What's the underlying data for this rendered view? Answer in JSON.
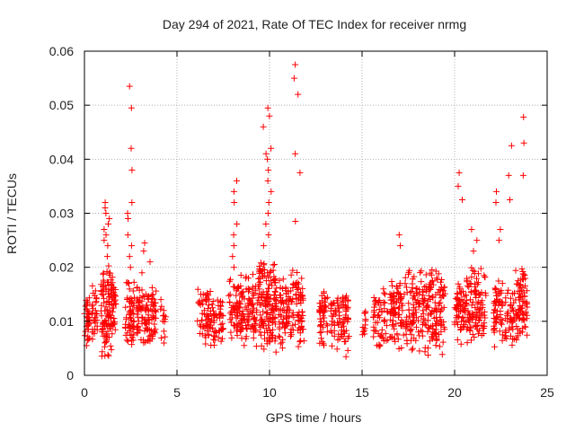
{
  "chart_data": {
    "type": "scatter",
    "title": "Day 294 of 2021, Rate Of TEC Index for receiver nrmg",
    "xlabel": "GPS time / hours",
    "ylabel": "ROTI / TECUs",
    "xlim": [
      0,
      25
    ],
    "ylim": [
      0,
      0.06
    ],
    "grid": true,
    "marker": "+",
    "marker_color": "#ff0000",
    "x_ticks": [
      0,
      5,
      10,
      15,
      20,
      25
    ],
    "x_tick_labels": [
      "0",
      "5",
      "10",
      "15",
      "20",
      "25"
    ],
    "y_ticks": [
      0,
      0.01,
      0.02,
      0.03,
      0.04,
      0.05,
      0.06
    ],
    "y_tick_labels": [
      "0",
      "0.01",
      "0.02",
      "0.03",
      "0.04",
      "0.05",
      "0.06"
    ],
    "series": [
      {
        "name": "ROTI",
        "clusters": [
          {
            "x0": 0.0,
            "x1": 0.3,
            "count": 35,
            "base_min": 0.004,
            "base_max": 0.016,
            "peaks": []
          },
          {
            "x0": 0.4,
            "x1": 0.7,
            "count": 30,
            "base_min": 0.005,
            "base_max": 0.017,
            "peaks": []
          },
          {
            "x0": 0.9,
            "x1": 1.5,
            "count": 110,
            "base_min": 0.002,
            "base_max": 0.021,
            "peaks": [
              0.022,
              0.024,
              0.025,
              0.026,
              0.027,
              0.028,
              0.029,
              0.03,
              0.031,
              0.032
            ]
          },
          {
            "x0": 1.5,
            "x1": 1.7,
            "count": 25,
            "base_min": 0.004,
            "base_max": 0.019,
            "peaks": []
          },
          {
            "x0": 2.2,
            "x1": 2.7,
            "count": 60,
            "base_min": 0.003,
            "base_max": 0.018,
            "peaks": [
              0.02,
              0.022,
              0.024,
              0.026,
              0.029,
              0.03,
              0.032,
              0.038,
              0.042,
              0.0495,
              0.0535
            ]
          },
          {
            "x0": 2.8,
            "x1": 3.9,
            "count": 110,
            "base_min": 0.003,
            "base_max": 0.017,
            "peaks": [
              0.019,
              0.021,
              0.023,
              0.0245
            ]
          },
          {
            "x0": 4.1,
            "x1": 4.4,
            "count": 14,
            "base_min": 0.004,
            "base_max": 0.016,
            "peaks": []
          },
          {
            "x0": 6.1,
            "x1": 7.5,
            "count": 110,
            "base_min": 0.004,
            "base_max": 0.016,
            "peaks": []
          },
          {
            "x0": 7.8,
            "x1": 8.4,
            "count": 55,
            "base_min": 0.004,
            "base_max": 0.018,
            "peaks": [
              0.02,
              0.022,
              0.024,
              0.026,
              0.028,
              0.032,
              0.034,
              0.036
            ]
          },
          {
            "x0": 8.4,
            "x1": 9.4,
            "count": 95,
            "base_min": 0.003,
            "base_max": 0.019,
            "peaks": []
          },
          {
            "x0": 9.4,
            "x1": 10.4,
            "count": 150,
            "base_min": 0.002,
            "base_max": 0.022,
            "peaks": [
              0.024,
              0.026,
              0.028,
              0.03,
              0.032,
              0.034,
              0.036,
              0.038,
              0.04,
              0.041,
              0.042,
              0.046,
              0.048,
              0.0495
            ]
          },
          {
            "x0": 10.5,
            "x1": 11.1,
            "count": 60,
            "base_min": 0.004,
            "base_max": 0.019,
            "peaks": []
          },
          {
            "x0": 11.1,
            "x1": 11.9,
            "count": 75,
            "base_min": 0.003,
            "base_max": 0.02,
            "peaks": [
              0.0285,
              0.0375,
              0.041,
              0.052,
              0.055,
              0.0575
            ]
          },
          {
            "x0": 12.7,
            "x1": 13.2,
            "count": 45,
            "base_min": 0.004,
            "base_max": 0.016,
            "peaks": []
          },
          {
            "x0": 13.3,
            "x1": 14.3,
            "count": 85,
            "base_min": 0.003,
            "base_max": 0.016,
            "peaks": []
          },
          {
            "x0": 15.0,
            "x1": 15.2,
            "count": 12,
            "base_min": 0.006,
            "base_max": 0.013,
            "peaks": []
          },
          {
            "x0": 15.6,
            "x1": 16.4,
            "count": 55,
            "base_min": 0.003,
            "base_max": 0.017,
            "peaks": []
          },
          {
            "x0": 16.5,
            "x1": 17.3,
            "count": 80,
            "base_min": 0.003,
            "base_max": 0.018,
            "peaks": [
              0.024,
              0.026
            ]
          },
          {
            "x0": 17.3,
            "x1": 19.5,
            "count": 220,
            "base_min": 0.002,
            "base_max": 0.02,
            "peaks": []
          },
          {
            "x0": 20.0,
            "x1": 20.6,
            "count": 60,
            "base_min": 0.004,
            "base_max": 0.019,
            "peaks": [
              0.0325,
              0.035,
              0.0375
            ]
          },
          {
            "x0": 20.6,
            "x1": 21.7,
            "count": 110,
            "base_min": 0.003,
            "base_max": 0.021,
            "peaks": [
              0.023,
              0.025,
              0.027
            ]
          },
          {
            "x0": 22.1,
            "x1": 22.6,
            "count": 55,
            "base_min": 0.003,
            "base_max": 0.018,
            "peaks": [
              0.025,
              0.027,
              0.032,
              0.034
            ]
          },
          {
            "x0": 22.7,
            "x1": 23.3,
            "count": 45,
            "base_min": 0.003,
            "base_max": 0.016,
            "peaks": [
              0.0325,
              0.037,
              0.0425
            ]
          },
          {
            "x0": 23.3,
            "x1": 23.95,
            "count": 80,
            "base_min": 0.003,
            "base_max": 0.02,
            "peaks": [
              0.037,
              0.043,
              0.0478
            ]
          }
        ]
      }
    ]
  }
}
